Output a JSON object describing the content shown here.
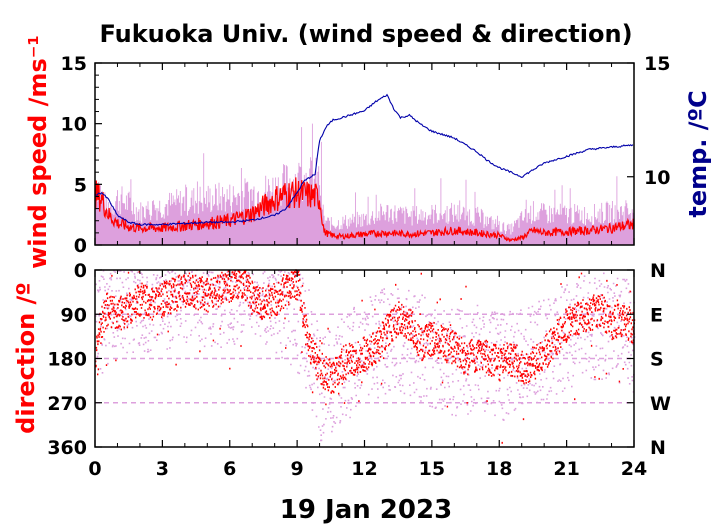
{
  "chart_data": [
    {
      "type": "line",
      "title": "Fukuoka Univ. (wind speed & direction)",
      "ylabel": "wind speed /ms⁻¹",
      "y2label": "temp. /ºC",
      "xlabel": "19 Jan 2023",
      "xlim": [
        0,
        24
      ],
      "ylim": [
        0,
        15
      ],
      "y2lim": [
        7,
        15
      ],
      "xticks": [
        "0",
        "3",
        "6",
        "9",
        "12",
        "15",
        "18",
        "21",
        "24"
      ],
      "yticks": [
        "0",
        "5",
        "10",
        "15"
      ],
      "y2ticks": [
        "10",
        "15"
      ],
      "series": [
        {
          "key": "gust",
          "color": "#dda0dd",
          "x": [
            0,
            0.5,
            1,
            1.5,
            2,
            3,
            4,
            5,
            6,
            7,
            7.5,
            8,
            8.5,
            9,
            9.5,
            10,
            10.2,
            10.5,
            11,
            12,
            13,
            14,
            15,
            16,
            17,
            18,
            18.5,
            19,
            19.5,
            20,
            21,
            22,
            23,
            24
          ],
          "y": [
            6.8,
            3.5,
            4.5,
            4,
            3.2,
            3.8,
            4.2,
            4.5,
            4.6,
            5,
            5.2,
            5.5,
            6,
            6.4,
            6.5,
            6.3,
            2.4,
            2,
            2.2,
            2.5,
            3.2,
            2.8,
            3,
            3.1,
            2.8,
            1.8,
            1.5,
            2.5,
            3.2,
            3,
            3,
            2.9,
            3.2,
            3.3
          ]
        },
        {
          "key": "wind",
          "color": "#ff0000",
          "x": [
            0,
            0.3,
            0.6,
            1,
            1.5,
            2,
            3,
            4,
            5,
            6,
            7,
            7.5,
            8,
            8.5,
            9,
            9.5,
            10,
            10.2,
            10.5,
            11,
            12,
            13,
            14,
            15,
            16,
            17,
            18,
            18.5,
            19,
            19.5,
            20,
            21,
            22,
            23,
            24
          ],
          "y": [
            4.2,
            3.8,
            2.5,
            1.8,
            1.5,
            1.4,
            1.4,
            1.6,
            1.8,
            2,
            2.6,
            3.2,
            3.8,
            4.2,
            4.3,
            4.1,
            3.9,
            1.1,
            0.8,
            0.7,
            0.9,
            1,
            0.9,
            1,
            1.2,
            1,
            0.8,
            0.4,
            0.6,
            1.2,
            1,
            1.1,
            1.2,
            1.4,
            1.7
          ]
        },
        {
          "key": "temp",
          "axis": "right",
          "color": "#0000aa",
          "x": [
            0,
            0.3,
            0.6,
            1,
            1.5,
            2,
            3,
            4,
            5,
            6,
            7,
            8,
            8.5,
            9,
            9.3,
            9.6,
            9.8,
            10,
            10.3,
            10.6,
            11,
            12,
            12.5,
            13,
            13.3,
            13.6,
            14,
            14.5,
            15,
            16,
            16.5,
            17,
            17.5,
            18,
            18.5,
            19,
            19.5,
            20,
            21,
            22,
            23,
            24
          ],
          "y": [
            9.2,
            9.3,
            9,
            8.3,
            8,
            7.9,
            7.9,
            7.95,
            8,
            8,
            8.1,
            8.3,
            8.6,
            9.3,
            9.8,
            10,
            10.1,
            11.6,
            12.2,
            12.5,
            12.6,
            12.9,
            13.3,
            13.6,
            13,
            12.6,
            12.7,
            12.3,
            12,
            11.7,
            11.4,
            11.1,
            10.7,
            10.4,
            10.2,
            10,
            10.3,
            10.6,
            10.9,
            11.2,
            11.3,
            11.4
          ]
        }
      ]
    },
    {
      "type": "scatter",
      "ylabel": "direction /º",
      "xlabel": "19 Jan 2023",
      "xlim": [
        0,
        24
      ],
      "ylim": [
        0,
        360
      ],
      "y_inverted": true,
      "xticks": [
        "0",
        "3",
        "6",
        "9",
        "12",
        "15",
        "18",
        "21",
        "24"
      ],
      "yticks": [
        "0",
        "90",
        "180",
        "270",
        "360"
      ],
      "y2ticks": [
        "N",
        "E",
        "S",
        "W",
        "N"
      ],
      "series": [
        {
          "key": "gust_dir",
          "color": "#dda0dd",
          "x": [
            0,
            0.5,
            1,
            2,
            3,
            4,
            5,
            6,
            7,
            8,
            9,
            9.5,
            10,
            10.5,
            11,
            12,
            13,
            14,
            15,
            16,
            17,
            18,
            19,
            20,
            21,
            22,
            23,
            24
          ],
          "y": [
            130,
            90,
            70,
            60,
            60,
            40,
            50,
            45,
            30,
            60,
            100,
            150,
            240,
            220,
            200,
            170,
            140,
            150,
            170,
            190,
            180,
            200,
            180,
            170,
            130,
            120,
            110,
            140
          ]
        },
        {
          "key": "wind_dir",
          "color": "#ff0000",
          "x": [
            0,
            0.2,
            0.5,
            1,
            1.5,
            2,
            2.5,
            3,
            3.5,
            4,
            4.5,
            5,
            5.5,
            6,
            6.5,
            7,
            7.5,
            8,
            8.5,
            9,
            9.5,
            10,
            10.5,
            11,
            11.5,
            12,
            12.5,
            13,
            13.5,
            14,
            14.5,
            15,
            15.5,
            16,
            16.5,
            17,
            17.5,
            18,
            18.5,
            19,
            19.5,
            20,
            20.5,
            21,
            21.5,
            22,
            22.5,
            23,
            23.5,
            24
          ],
          "y": [
            180,
            120,
            80,
            90,
            80,
            60,
            70,
            60,
            50,
            40,
            45,
            50,
            40,
            30,
            20,
            60,
            70,
            60,
            40,
            20,
            160,
            200,
            220,
            190,
            180,
            170,
            160,
            120,
            100,
            110,
            150,
            140,
            150,
            160,
            180,
            170,
            180,
            190,
            180,
            200,
            190,
            170,
            140,
            110,
            100,
            90,
            80,
            110,
            100,
            120
          ]
        }
      ]
    }
  ]
}
